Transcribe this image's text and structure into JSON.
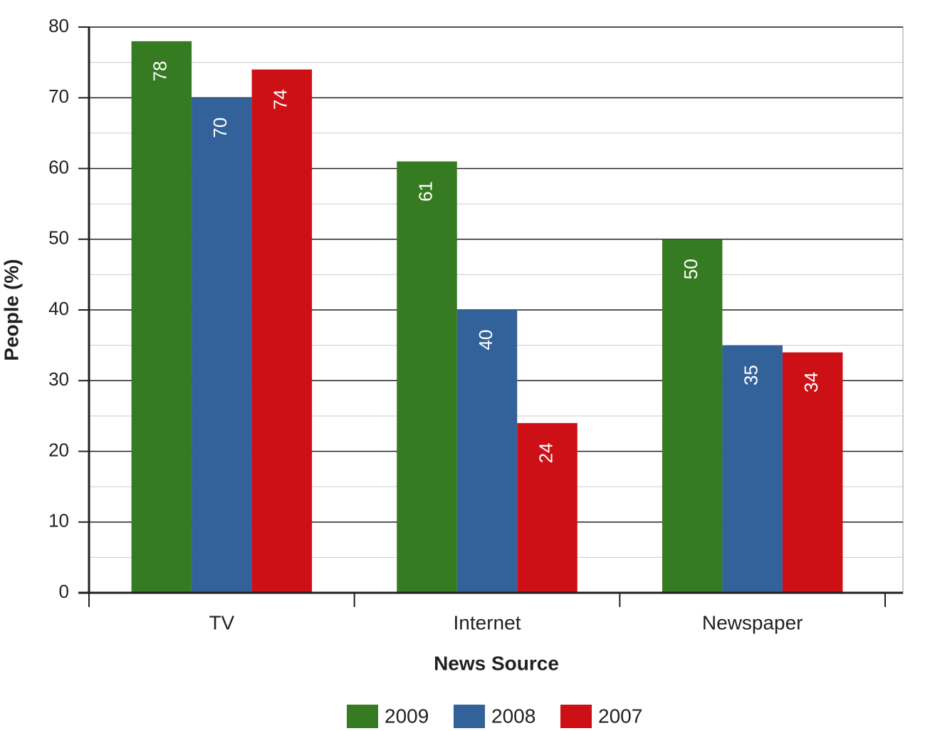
{
  "chart_data": {
    "type": "bar",
    "x_label": "News Source",
    "y_label": "People (%)",
    "categories": [
      "TV",
      "Internet",
      "Newspaper"
    ],
    "series": [
      {
        "name": "2009",
        "color": "#367a21",
        "values": [
          78,
          61,
          50
        ]
      },
      {
        "name": "2008",
        "color": "#336199",
        "values": [
          70,
          40,
          35
        ]
      },
      {
        "name": "2007",
        "color": "#cc1016",
        "values": [
          74,
          24,
          34
        ]
      }
    ],
    "ylim": [
      0,
      80
    ],
    "yticks": [
      0,
      10,
      20,
      30,
      40,
      50,
      60,
      70,
      80
    ],
    "grid": true,
    "minor_grid": true,
    "legend": "bottom"
  }
}
